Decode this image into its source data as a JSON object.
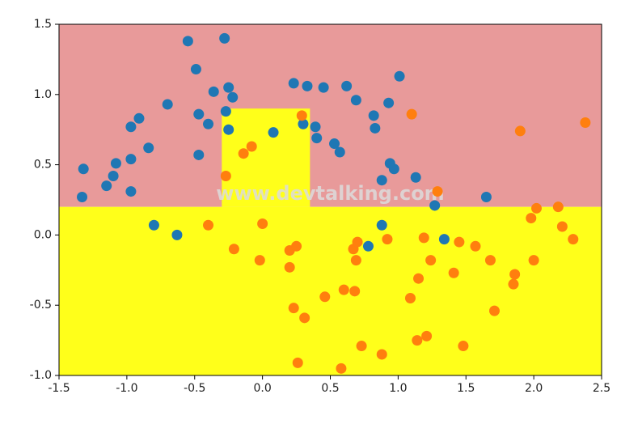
{
  "chart_data": {
    "type": "scatter",
    "watermark": "www.devtalking.com",
    "regions": [
      {
        "color": "#e89a9a",
        "x": [
          -1.5,
          2.5
        ],
        "y": [
          0.2,
          1.5
        ]
      },
      {
        "color": "#ffff1a",
        "x": [
          -1.5,
          2.5
        ],
        "y": [
          -1,
          0.2
        ]
      },
      {
        "color": "#ffff1a",
        "x": [
          -0.3,
          0.35
        ],
        "y": [
          0.2,
          0.9
        ]
      }
    ],
    "series": [
      {
        "color": "#1f77b4",
        "x": [
          -1.33,
          -1.32,
          -1.15,
          -1.1,
          -1.08,
          -0.97,
          -0.97,
          -0.97,
          -0.91,
          -0.84,
          -0.8,
          -0.63,
          -0.7,
          -0.55,
          -0.49,
          -0.47,
          -0.47,
          -0.4,
          -0.36,
          -0.28,
          -0.27,
          -0.25,
          -0.22,
          -0.25,
          0.08,
          0.23,
          0.33,
          0.3,
          0.39,
          0.4,
          0.45,
          0.53,
          0.57,
          0.62,
          0.69,
          0.78,
          0.82,
          0.83,
          0.88,
          0.88,
          0.93,
          0.94,
          0.97,
          1.01,
          1.13,
          1.27,
          1.34,
          1.65
        ],
        "y": [
          0.27,
          0.47,
          0.35,
          0.42,
          0.51,
          0.31,
          0.54,
          0.77,
          0.83,
          0.62,
          0.07,
          0.0,
          0.93,
          1.38,
          1.18,
          0.86,
          0.57,
          0.79,
          1.02,
          1.4,
          0.88,
          1.05,
          0.98,
          0.75,
          0.73,
          1.08,
          1.06,
          0.79,
          0.77,
          0.69,
          1.05,
          0.65,
          0.59,
          1.06,
          0.96,
          -0.08,
          0.85,
          0.76,
          0.39,
          0.07,
          0.94,
          0.51,
          0.47,
          1.13,
          0.41,
          0.21,
          -0.03,
          0.27
        ]
      },
      {
        "color": "#ff7f0e",
        "x": [
          -0.27,
          -0.14,
          -0.08,
          -0.4,
          -0.21,
          0.0,
          -0.02,
          0.2,
          0.25,
          0.2,
          0.23,
          0.31,
          0.26,
          0.29,
          0.46,
          0.58,
          0.6,
          0.68,
          0.67,
          0.7,
          0.69,
          0.73,
          0.88,
          0.92,
          1.1,
          1.09,
          1.15,
          1.14,
          1.21,
          1.19,
          1.24,
          1.29,
          1.41,
          1.45,
          1.48,
          1.57,
          1.68,
          1.71,
          1.85,
          1.86,
          1.9,
          1.98,
          2.0,
          2.02,
          2.18,
          2.21,
          2.29,
          2.38
        ],
        "y": [
          0.42,
          0.58,
          0.63,
          0.07,
          -0.1,
          0.08,
          -0.18,
          -0.11,
          -0.08,
          -0.23,
          -0.52,
          -0.59,
          -0.91,
          0.85,
          -0.44,
          -0.95,
          -0.39,
          -0.4,
          -0.1,
          -0.05,
          -0.18,
          -0.79,
          -0.85,
          -0.03,
          0.86,
          -0.45,
          -0.31,
          -0.75,
          -0.72,
          -0.02,
          -0.18,
          0.31,
          -0.27,
          -0.05,
          -0.79,
          -0.08,
          -0.18,
          -0.54,
          -0.35,
          -0.28,
          0.74,
          0.12,
          -0.18,
          0.19,
          0.2,
          0.06,
          -0.03,
          0.8
        ]
      }
    ],
    "xlim": [
      -1.5,
      2.5
    ],
    "xticks": [
      -1.5,
      {
        "value": -1,
        "label": "-1.0"
      },
      -0.5,
      {
        "value": 0,
        "label": "0.0"
      },
      0.5,
      {
        "value": 1,
        "label": "1.0"
      },
      1.5,
      {
        "value": 2,
        "label": "2.0"
      },
      2.5
    ],
    "ylim": [
      -1,
      1.5
    ],
    "yticks": [
      {
        "value": -1,
        "label": "-1.0"
      },
      -0.5,
      {
        "value": 0,
        "label": "0.0"
      },
      0.5,
      {
        "value": 1,
        "label": "1.0"
      },
      1.5
    ]
  }
}
